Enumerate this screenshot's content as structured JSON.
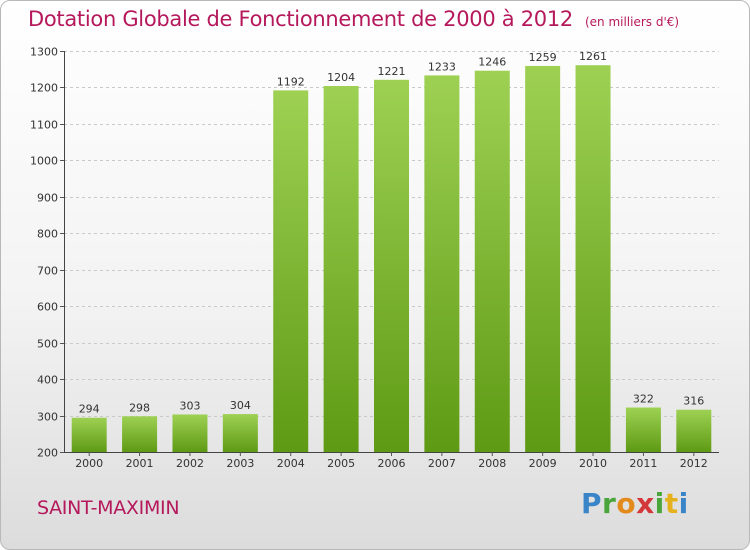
{
  "header": {
    "title": "Dotation Globale de Fonctionnement de 2000 à 2012",
    "subtitle": "(en milliers d'€)"
  },
  "footer": {
    "place": "SAINT-MAXIMIN",
    "logo_text": "Proxiti"
  },
  "colors": {
    "accent": "#b5195b",
    "bar_top": "#9ed153",
    "bar_bottom": "#5e9a14"
  },
  "chart_data": {
    "type": "bar",
    "categories": [
      "2000",
      "2001",
      "2002",
      "2003",
      "2004",
      "2005",
      "2006",
      "2007",
      "2008",
      "2009",
      "2010",
      "2011",
      "2012"
    ],
    "values": [
      294,
      298,
      303,
      304,
      1192,
      1204,
      1221,
      1233,
      1246,
      1259,
      1261,
      322,
      316
    ],
    "title": "Dotation Globale de Fonctionnement de 2000 à 2012",
    "subtitle": "(en milliers d'€)",
    "ylim": [
      200,
      1300
    ],
    "yticks": [
      200,
      300,
      400,
      500,
      600,
      700,
      800,
      900,
      1000,
      1100,
      1200,
      1300
    ],
    "grid": true,
    "data_labels": true
  }
}
